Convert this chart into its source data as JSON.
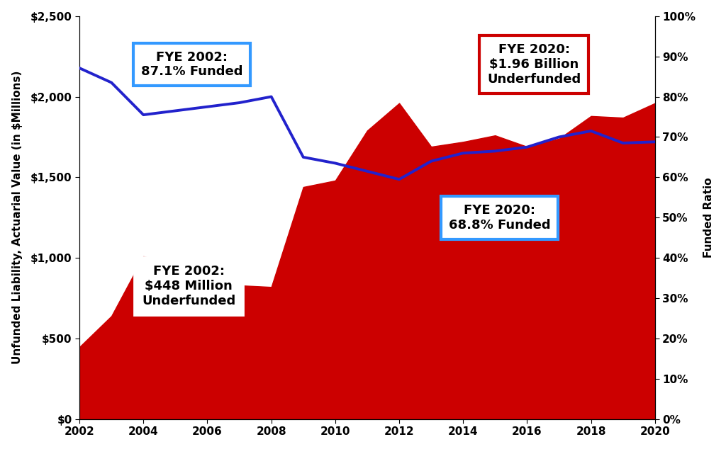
{
  "years": [
    2002,
    2003,
    2004,
    2005,
    2006,
    2007,
    2008,
    2009,
    2010,
    2011,
    2012,
    2013,
    2014,
    2015,
    2016,
    2017,
    2018,
    2019,
    2020
  ],
  "unfunded_liability": [
    448,
    640,
    1010,
    960,
    880,
    830,
    820,
    1440,
    1480,
    1790,
    1960,
    1690,
    1720,
    1760,
    1690,
    1740,
    1880,
    1870,
    1960
  ],
  "funded_ratio": [
    87.1,
    83.5,
    75.5,
    76.5,
    77.5,
    78.5,
    80.0,
    65.0,
    63.5,
    61.5,
    59.5,
    64.0,
    66.0,
    66.5,
    67.5,
    70.0,
    71.5,
    68.5,
    68.8
  ],
  "area_color": "#CC0000",
  "line_color": "#2222CC",
  "ylim_left": [
    0,
    2500
  ],
  "ylim_right": [
    0,
    100
  ],
  "yticks_left": [
    0,
    500,
    1000,
    1500,
    2000,
    2500
  ],
  "yticks_right": [
    0,
    10,
    20,
    30,
    40,
    50,
    60,
    70,
    80,
    90,
    100
  ],
  "ylabel_left": "Unfunded Liability, Actuarial Value (in $Millions)",
  "ylabel_right": "Funded Ratio",
  "annotation1_text": "FYE 2002:\n87.1% Funded",
  "annotation2_text": "FYE 2002:\n$448 Million\nUnderfunded",
  "annotation3_text": "FYE 2020:\n$1.96 Billion\nUnderfunded",
  "annotation4_text": "FYE 2020:\n68.8% Funded",
  "background_color": "#FFFFFF",
  "line_width": 2.8,
  "xticks": [
    2002,
    2004,
    2006,
    2008,
    2010,
    2012,
    2014,
    2016,
    2018,
    2020
  ]
}
